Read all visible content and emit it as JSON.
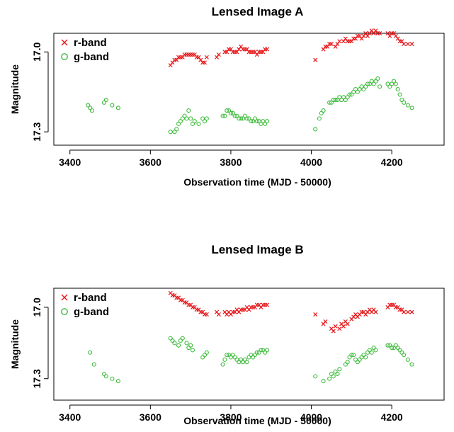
{
  "chart_data": [
    {
      "type": "scatter",
      "title": "Lensed Image A",
      "xlabel": "Observation time (MJD - 50000)",
      "ylabel": "Magnitude",
      "xlim": [
        3360,
        4330
      ],
      "ylim": [
        17.35,
        16.93
      ],
      "y_axis_inverted": true,
      "x_ticks": [
        "3400",
        "3600",
        "3800",
        "4000",
        "4200"
      ],
      "y_ticks": [
        "17.0",
        "17.3"
      ],
      "grid": false,
      "legend": "top-left",
      "series": [
        {
          "name": "r-band",
          "marker": "x",
          "color": "#e8191c",
          "x": [
            3650,
            3655,
            3660,
            3665,
            3670,
            3675,
            3680,
            3685,
            3690,
            3695,
            3700,
            3705,
            3710,
            3715,
            3720,
            3725,
            3730,
            3735,
            3740,
            3765,
            3770,
            3785,
            3790,
            3795,
            3800,
            3805,
            3810,
            3815,
            3820,
            3825,
            3830,
            3835,
            3840,
            3845,
            3850,
            3855,
            3860,
            3865,
            3870,
            3875,
            3880,
            3885,
            3890,
            4010,
            4030,
            4035,
            4040,
            4045,
            4050,
            4060,
            4065,
            4070,
            4080,
            4085,
            4090,
            4095,
            4100,
            4105,
            4110,
            4115,
            4120,
            4125,
            4130,
            4135,
            4140,
            4145,
            4150,
            4155,
            4160,
            4165,
            4170,
            4190,
            4195,
            4200,
            4205,
            4210,
            4215,
            4220,
            4225,
            4230,
            4240,
            4250
          ],
          "y": [
            17.05,
            17.04,
            17.03,
            17.03,
            17.02,
            17.02,
            17.02,
            17.01,
            17.01,
            17.01,
            17.01,
            17.01,
            17.01,
            17.02,
            17.02,
            17.03,
            17.04,
            17.04,
            17.02,
            17.02,
            17.01,
            17.0,
            17.0,
            16.99,
            16.99,
            17.0,
            17.0,
            17.0,
            16.99,
            16.98,
            16.99,
            16.99,
            16.99,
            17.0,
            17.0,
            17.0,
            17.0,
            17.01,
            17.0,
            17.0,
            17.0,
            16.99,
            16.99,
            17.03,
            16.99,
            16.98,
            16.98,
            16.97,
            16.97,
            16.98,
            16.97,
            16.96,
            16.96,
            16.95,
            16.96,
            16.96,
            16.96,
            16.95,
            16.95,
            16.94,
            16.94,
            16.95,
            16.94,
            16.93,
            16.94,
            16.93,
            16.92,
            16.93,
            16.92,
            16.93,
            16.93,
            16.93,
            16.94,
            16.93,
            16.93,
            16.94,
            16.95,
            16.96,
            16.96,
            16.97,
            16.97,
            16.97
          ]
        },
        {
          "name": "g-band",
          "marker": "o",
          "color": "#3dbb3b",
          "x": [
            3445,
            3450,
            3455,
            3485,
            3490,
            3505,
            3520,
            3650,
            3660,
            3665,
            3670,
            3675,
            3680,
            3685,
            3690,
            3695,
            3700,
            3705,
            3710,
            3720,
            3730,
            3735,
            3740,
            3780,
            3785,
            3790,
            3795,
            3800,
            3805,
            3810,
            3815,
            3820,
            3825,
            3830,
            3835,
            3840,
            3845,
            3850,
            3855,
            3860,
            3865,
            3870,
            3875,
            3880,
            3885,
            3890,
            4010,
            4020,
            4025,
            4030,
            4045,
            4050,
            4055,
            4060,
            4065,
            4070,
            4075,
            4080,
            4085,
            4090,
            4095,
            4100,
            4105,
            4110,
            4115,
            4120,
            4125,
            4130,
            4135,
            4140,
            4145,
            4150,
            4155,
            4160,
            4165,
            4170,
            4190,
            4195,
            4200,
            4205,
            4210,
            4215,
            4220,
            4225,
            4230,
            4240,
            4250
          ],
          "y": [
            17.2,
            17.21,
            17.22,
            17.19,
            17.18,
            17.2,
            17.21,
            17.3,
            17.3,
            17.29,
            17.27,
            17.26,
            17.25,
            17.24,
            17.25,
            17.22,
            17.25,
            17.27,
            17.26,
            17.27,
            17.25,
            17.26,
            17.25,
            17.24,
            17.24,
            17.22,
            17.22,
            17.23,
            17.23,
            17.24,
            17.24,
            17.25,
            17.25,
            17.25,
            17.24,
            17.25,
            17.25,
            17.26,
            17.26,
            17.25,
            17.26,
            17.26,
            17.27,
            17.26,
            17.27,
            17.26,
            17.29,
            17.25,
            17.23,
            17.22,
            17.19,
            17.19,
            17.18,
            17.18,
            17.18,
            17.17,
            17.18,
            17.17,
            17.18,
            17.17,
            17.16,
            17.16,
            17.15,
            17.14,
            17.15,
            17.14,
            17.13,
            17.14,
            17.13,
            17.12,
            17.12,
            17.11,
            17.12,
            17.11,
            17.1,
            17.13,
            17.12,
            17.13,
            17.12,
            17.11,
            17.12,
            17.14,
            17.16,
            17.18,
            17.19,
            17.2,
            17.21
          ]
        }
      ]
    },
    {
      "type": "scatter",
      "title": "Lensed Image B",
      "xlabel": "Observation time (MJD - 50000)",
      "ylabel": "Magnitude",
      "xlim": [
        3360,
        4330
      ],
      "ylim": [
        17.39,
        16.92
      ],
      "y_axis_inverted": true,
      "x_ticks": [
        "3400",
        "3600",
        "3800",
        "4000",
        "4200"
      ],
      "y_ticks": [
        "17.0",
        "17.3"
      ],
      "grid": false,
      "legend": "top-left",
      "series": [
        {
          "name": "r-band",
          "marker": "x",
          "color": "#e8191c",
          "x": [
            3650,
            3655,
            3660,
            3665,
            3670,
            3675,
            3680,
            3685,
            3690,
            3695,
            3700,
            3705,
            3710,
            3715,
            3720,
            3725,
            3730,
            3735,
            3740,
            3765,
            3770,
            3785,
            3790,
            3795,
            3800,
            3805,
            3810,
            3815,
            3820,
            3825,
            3830,
            3835,
            3840,
            3845,
            3850,
            3855,
            3860,
            3865,
            3870,
            3875,
            3880,
            3885,
            3890,
            4010,
            4030,
            4035,
            4050,
            4055,
            4060,
            4070,
            4075,
            4080,
            4085,
            4090,
            4100,
            4105,
            4110,
            4115,
            4120,
            4125,
            4130,
            4135,
            4140,
            4145,
            4150,
            4155,
            4160,
            4190,
            4195,
            4200,
            4205,
            4210,
            4215,
            4220,
            4225,
            4230,
            4240,
            4250
          ],
          "y": [
            16.94,
            16.95,
            16.95,
            16.96,
            16.96,
            16.97,
            16.97,
            16.98,
            16.98,
            16.99,
            16.99,
            17.0,
            17.0,
            17.01,
            17.01,
            17.02,
            17.02,
            17.03,
            17.03,
            17.02,
            17.03,
            17.02,
            17.03,
            17.02,
            17.03,
            17.02,
            17.02,
            17.01,
            17.02,
            17.01,
            17.01,
            17.01,
            17.0,
            17.01,
            17.0,
            17.0,
            17.0,
            16.99,
            16.99,
            17.0,
            16.99,
            16.99,
            16.99,
            17.03,
            17.07,
            17.06,
            17.09,
            17.1,
            17.08,
            17.09,
            17.07,
            17.08,
            17.06,
            17.07,
            17.05,
            17.04,
            17.03,
            17.04,
            17.03,
            17.02,
            17.02,
            17.03,
            17.02,
            17.01,
            17.02,
            17.01,
            17.02,
            17.0,
            16.99,
            16.99,
            16.99,
            17.0,
            17.0,
            17.01,
            17.01,
            17.02,
            17.02,
            17.02
          ]
        },
        {
          "name": "g-band",
          "marker": "o",
          "color": "#3dbb3b",
          "x": [
            3450,
            3460,
            3485,
            3490,
            3505,
            3520,
            3650,
            3655,
            3660,
            3670,
            3675,
            3680,
            3690,
            3695,
            3700,
            3705,
            3730,
            3735,
            3740,
            3780,
            3785,
            3790,
            3795,
            3800,
            3805,
            3810,
            3815,
            3820,
            3825,
            3830,
            3835,
            3840,
            3845,
            3850,
            3855,
            3860,
            3865,
            3870,
            3875,
            3880,
            3885,
            3890,
            4010,
            4030,
            4045,
            4050,
            4055,
            4060,
            4065,
            4070,
            4085,
            4090,
            4095,
            4100,
            4105,
            4110,
            4115,
            4120,
            4125,
            4130,
            4135,
            4140,
            4145,
            4150,
            4155,
            4160,
            4190,
            4195,
            4200,
            4205,
            4210,
            4215,
            4220,
            4225,
            4230,
            4240,
            4250
          ],
          "y": [
            17.19,
            17.24,
            17.28,
            17.29,
            17.3,
            17.31,
            17.13,
            17.14,
            17.15,
            17.16,
            17.14,
            17.13,
            17.15,
            17.17,
            17.16,
            17.18,
            17.21,
            17.2,
            17.19,
            17.24,
            17.22,
            17.2,
            17.2,
            17.21,
            17.2,
            17.21,
            17.22,
            17.23,
            17.22,
            17.23,
            17.22,
            17.23,
            17.21,
            17.2,
            17.21,
            17.2,
            17.19,
            17.19,
            17.18,
            17.18,
            17.19,
            17.18,
            17.29,
            17.31,
            17.3,
            17.28,
            17.29,
            17.27,
            17.28,
            17.26,
            17.24,
            17.23,
            17.21,
            17.2,
            17.2,
            17.22,
            17.23,
            17.22,
            17.21,
            17.2,
            17.21,
            17.19,
            17.18,
            17.19,
            17.17,
            17.18,
            17.16,
            17.16,
            17.17,
            17.17,
            17.16,
            17.17,
            17.18,
            17.19,
            17.2,
            17.22,
            17.24
          ]
        }
      ]
    }
  ]
}
